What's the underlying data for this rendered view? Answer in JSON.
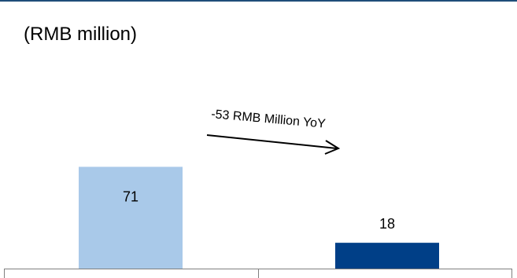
{
  "unit_label": "(RMB million)",
  "annotation": {
    "text": "-53 RMB Million YoY"
  },
  "chart_data": {
    "type": "bar",
    "categories": [
      "",
      ""
    ],
    "values": [
      71,
      18
    ],
    "data_labels": [
      "71",
      "18"
    ],
    "colors": [
      "#a9c9e9",
      "#003f87"
    ],
    "title": "",
    "xlabel": "",
    "ylabel": "",
    "ylim": [
      0,
      100
    ],
    "grid": false,
    "legend": "none"
  }
}
